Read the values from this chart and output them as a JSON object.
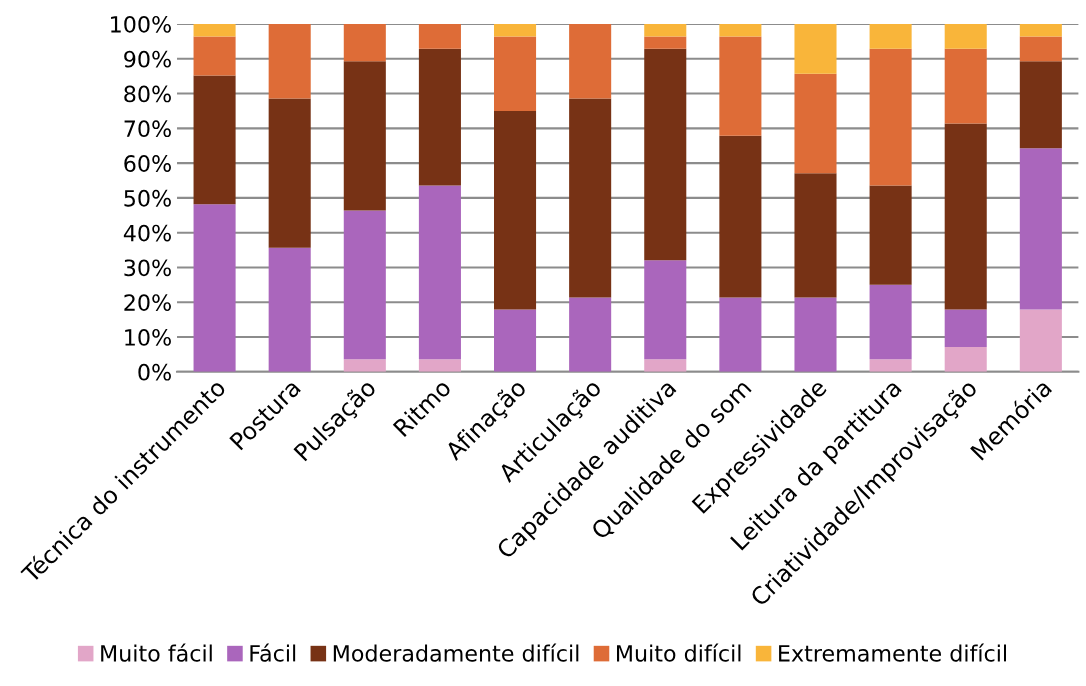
{
  "chart_data": {
    "type": "bar",
    "stacked": true,
    "categories": [
      "Técnica do instrumento",
      "Postura",
      "Pulsação",
      "Ritmo",
      "Afinação",
      "Articulação",
      "Capacidade auditiva",
      "Qualidade do som",
      "Expressividade",
      "Leitura da partitura",
      "Criatividade/Improvisação",
      "Memória"
    ],
    "series": [
      {
        "name": "Muito fácil",
        "color": "#e2a6c8",
        "values": [
          0,
          0,
          3.6,
          3.6,
          0,
          0,
          3.6,
          0,
          0,
          3.6,
          7.1,
          17.9
        ]
      },
      {
        "name": "Fácil",
        "color": "#aa66bc",
        "values": [
          48.2,
          35.7,
          42.8,
          50,
          17.9,
          21.4,
          28.5,
          21.4,
          21.4,
          21.4,
          10.8,
          46.4
        ]
      },
      {
        "name": "Moderadamente difícil",
        "color": "#773215",
        "values": [
          37,
          42.9,
          42.9,
          39.3,
          57.1,
          57.2,
          60.8,
          46.5,
          35.7,
          28.6,
          53.5,
          25
        ]
      },
      {
        "name": "Muito difícil",
        "color": "#de6c37",
        "values": [
          11.2,
          21.4,
          10.7,
          7.1,
          21.4,
          21.4,
          3.5,
          28.5,
          28.6,
          39.3,
          21.5,
          7.1
        ]
      },
      {
        "name": "Extremamente difícil",
        "color": "#f9b53a",
        "values": [
          3.6,
          0,
          0,
          0,
          3.6,
          0,
          3.6,
          3.6,
          14.3,
          7.1,
          7.1,
          3.6
        ]
      }
    ],
    "ylim": [
      0,
      100
    ],
    "yticks": [
      {
        "value": 0,
        "label": "0%"
      },
      {
        "value": 10,
        "label": "10%"
      },
      {
        "value": 20,
        "label": "20%"
      },
      {
        "value": 30,
        "label": "30%"
      },
      {
        "value": 40,
        "label": "40%"
      },
      {
        "value": 50,
        "label": "50%"
      },
      {
        "value": 60,
        "label": "60%"
      },
      {
        "value": 70,
        "label": "70%"
      },
      {
        "value": 80,
        "label": "80%"
      },
      {
        "value": 90,
        "label": "90%"
      },
      {
        "value": 100,
        "label": "100%"
      }
    ],
    "grid": "y",
    "legend": "bottom"
  }
}
